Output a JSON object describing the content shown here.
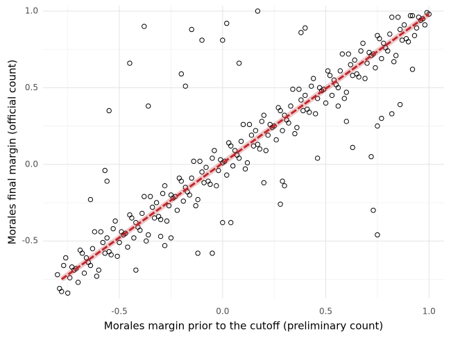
{
  "chart_data": {
    "type": "scatter",
    "xlabel": "Morales margin prior to the cutoff (preliminary count)",
    "ylabel": "Morales final margin (official count)",
    "xlim": [
      -0.87,
      1.073
    ],
    "ylim": [
      -0.875,
      1.036
    ],
    "xticks": [
      -0.5,
      {
        "value": 0,
        "label": "0.0"
      },
      0.5,
      {
        "value": 1,
        "label": "1.0"
      }
    ],
    "yticks": [
      -0.5,
      {
        "value": 0,
        "label": "0.0"
      },
      0.5,
      {
        "value": 1,
        "label": "1.0"
      }
    ],
    "x_minor_grid": [
      -0.75,
      -0.25,
      0.25,
      0.75
    ],
    "y_minor_grid": [
      -0.75,
      -0.25,
      0.25,
      0.75
    ],
    "grid": true,
    "color": "#000000",
    "x": [
      -0.8,
      -0.78,
      -0.76,
      -0.74,
      -0.72,
      -0.7,
      -0.68,
      -0.66,
      -0.64,
      -0.62,
      -0.6,
      -0.58,
      -0.56,
      -0.54,
      -0.52,
      -0.5,
      -0.48,
      -0.46,
      -0.44,
      -0.42,
      -0.4,
      -0.38,
      -0.36,
      -0.34,
      -0.32,
      -0.3,
      -0.28,
      -0.26,
      -0.24,
      -0.22,
      -0.2,
      -0.18,
      -0.16,
      -0.14,
      -0.12,
      -0.1,
      -0.08,
      -0.06,
      -0.04,
      -0.02,
      0.0,
      0.02,
      0.04,
      0.06,
      0.08,
      0.1,
      0.12,
      0.14,
      0.16,
      0.18,
      0.2,
      0.22,
      0.24,
      0.26,
      0.28,
      0.3,
      0.32,
      0.34,
      0.36,
      0.38,
      0.4,
      0.42,
      0.44,
      0.46,
      0.48,
      0.5,
      0.52,
      0.54,
      0.56,
      0.58,
      0.6,
      0.62,
      0.64,
      0.66,
      0.68,
      0.7,
      0.72,
      0.74,
      0.76,
      0.78,
      0.8,
      0.82,
      0.84,
      0.86,
      0.88,
      0.9,
      0.92,
      0.94,
      0.96,
      0.98,
      1.0,
      -0.79,
      -0.77,
      -0.75,
      -0.73,
      -0.71,
      -0.69,
      -0.67,
      -0.65,
      -0.63,
      -0.61,
      -0.59,
      -0.57,
      -0.55,
      -0.53,
      -0.51,
      -0.49,
      -0.47,
      -0.45,
      -0.43,
      -0.41,
      -0.39,
      -0.37,
      -0.35,
      -0.33,
      -0.31,
      -0.29,
      -0.27,
      -0.25,
      -0.23,
      -0.21,
      -0.19,
      -0.17,
      -0.15,
      -0.13,
      -0.11,
      -0.09,
      -0.07,
      -0.05,
      -0.03,
      -0.01,
      0.01,
      0.03,
      0.05,
      0.07,
      0.09,
      0.11,
      0.13,
      0.15,
      0.17,
      0.19,
      0.21,
      0.23,
      0.25,
      0.27,
      0.29,
      0.31,
      0.33,
      0.35,
      0.37,
      0.39,
      0.41,
      0.43,
      0.45,
      0.47,
      0.49,
      0.51,
      0.53,
      0.55,
      0.57,
      0.59,
      0.61,
      0.63,
      0.65,
      0.67,
      0.69,
      0.71,
      0.73,
      0.75,
      0.77,
      0.79,
      0.81,
      0.83,
      0.85,
      0.87,
      0.89,
      0.91,
      0.93,
      0.95,
      0.97,
      0.99,
      -0.38,
      -0.15,
      -0.1,
      0.0,
      0.02,
      0.17,
      0.38,
      0.4,
      -0.45,
      -0.55,
      -0.36,
      -0.2,
      -0.18,
      0.08,
      -0.57,
      -0.56,
      -0.64,
      -0.42,
      -0.12,
      -0.05,
      0.0,
      0.04,
      0.28,
      0.46,
      0.63,
      0.72,
      0.73,
      0.75,
      0.77,
      0.82,
      0.75,
      0.86,
      0.92,
      0.29,
      0.56,
      0.6,
      0.3,
      0.2,
      -0.28,
      -0.25,
      -0.3
    ],
    "y": [
      -0.72,
      -0.83,
      -0.61,
      -0.74,
      -0.69,
      -0.77,
      -0.58,
      -0.61,
      -0.66,
      -0.44,
      -0.69,
      -0.51,
      -0.48,
      -0.59,
      -0.37,
      -0.51,
      -0.46,
      -0.54,
      -0.35,
      -0.38,
      -0.43,
      -0.21,
      -0.46,
      -0.28,
      -0.25,
      -0.36,
      -0.14,
      -0.27,
      -0.22,
      -0.3,
      -0.11,
      -0.15,
      -0.2,
      0.02,
      -0.23,
      -0.05,
      -0.02,
      -0.13,
      0.09,
      -0.04,
      0.01,
      -0.07,
      0.12,
      0.09,
      0.04,
      0.26,
      0.01,
      0.19,
      0.22,
      0.1,
      0.32,
      0.19,
      0.24,
      0.16,
      0.35,
      0.32,
      0.27,
      0.49,
      0.24,
      0.42,
      0.45,
      0.34,
      0.56,
      0.43,
      0.48,
      0.4,
      0.58,
      0.55,
      0.5,
      0.72,
      0.47,
      0.65,
      0.68,
      0.57,
      0.79,
      0.66,
      0.71,
      0.63,
      0.82,
      0.79,
      0.74,
      0.96,
      0.71,
      0.88,
      0.91,
      0.8,
      0.97,
      0.89,
      0.94,
      0.91,
      0.98,
      -0.81,
      -0.66,
      -0.84,
      -0.67,
      -0.68,
      -0.56,
      -0.71,
      -0.64,
      -0.55,
      -0.73,
      -0.44,
      -0.58,
      -0.57,
      -0.42,
      -0.6,
      -0.44,
      -0.45,
      -0.33,
      -0.48,
      -0.41,
      -0.32,
      -0.5,
      -0.21,
      -0.35,
      -0.34,
      -0.19,
      -0.37,
      -0.2,
      -0.21,
      -0.09,
      -0.24,
      -0.18,
      -0.09,
      -0.27,
      0.02,
      -0.12,
      -0.11,
      0.04,
      -0.14,
      0.03,
      0.02,
      0.14,
      -0.01,
      0.06,
      0.15,
      -0.03,
      0.26,
      0.12,
      0.13,
      0.28,
      0.09,
      0.26,
      0.25,
      0.37,
      0.22,
      0.29,
      0.38,
      0.2,
      0.49,
      0.35,
      0.36,
      0.51,
      0.33,
      0.5,
      0.49,
      0.61,
      0.45,
      0.52,
      0.61,
      0.43,
      0.72,
      0.58,
      0.59,
      0.74,
      0.56,
      0.73,
      0.72,
      0.84,
      0.69,
      0.76,
      0.85,
      0.67,
      0.96,
      0.81,
      0.82,
      0.97,
      0.84,
      0.96,
      0.95,
      0.99,
      0.9,
      0.88,
      0.81,
      0.81,
      0.92,
      1.0,
      0.86,
      0.89,
      0.66,
      0.35,
      0.38,
      0.59,
      0.51,
      0.66,
      -0.04,
      -0.11,
      -0.23,
      -0.69,
      -0.58,
      -0.58,
      -0.38,
      -0.38,
      -0.26,
      0.04,
      0.11,
      0.05,
      -0.3,
      -0.46,
      0.3,
      0.33,
      0.25,
      0.39,
      0.62,
      -0.11,
      0.38,
      0.28,
      -0.14,
      -0.12,
      -0.53,
      -0.48,
      -0.47
    ],
    "fit": {
      "x": [
        -0.78,
        1.0
      ],
      "y": [
        -0.75,
        0.98
      ],
      "color": "#c0272d"
    }
  }
}
